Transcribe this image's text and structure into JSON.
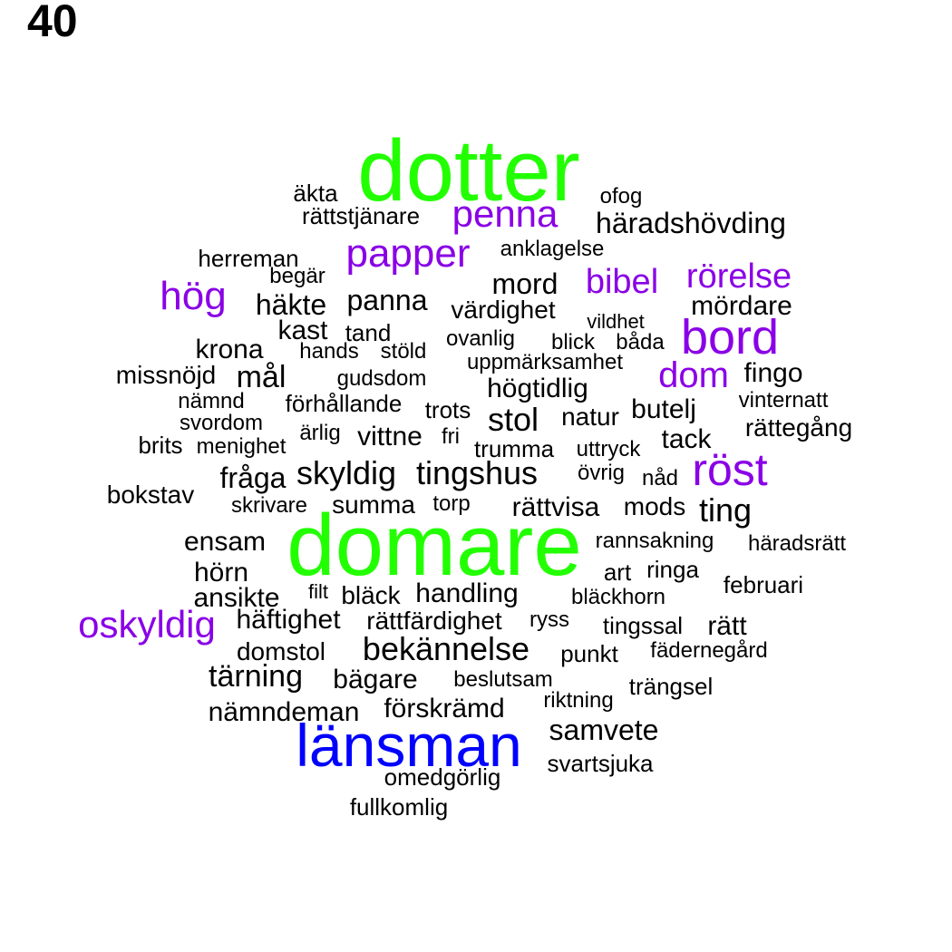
{
  "title": "40",
  "colors": {
    "green": "#22ff00",
    "purple": "#8a00e6",
    "blue": "#0000ff",
    "black": "#000000"
  },
  "words": [
    {
      "text": "dotter",
      "size": 96,
      "color": "green"
    },
    {
      "text": "domare",
      "size": 96,
      "color": "green"
    },
    {
      "text": "länsman",
      "size": 66,
      "color": "blue"
    },
    {
      "text": "bord",
      "size": 54,
      "color": "purple"
    },
    {
      "text": "röst",
      "size": 50,
      "color": "purple"
    },
    {
      "text": "papper",
      "size": 44,
      "color": "purple"
    },
    {
      "text": "penna",
      "size": 42,
      "color": "purple"
    },
    {
      "text": "hög",
      "size": 44,
      "color": "purple"
    },
    {
      "text": "oskyldig",
      "size": 42,
      "color": "purple"
    },
    {
      "text": "rörelse",
      "size": 38,
      "color": "purple"
    },
    {
      "text": "dom",
      "size": 40,
      "color": "purple"
    },
    {
      "text": "bibel",
      "size": 38,
      "color": "purple"
    },
    {
      "text": "äkta",
      "size": 26,
      "color": "black"
    },
    {
      "text": "ofog",
      "size": 24,
      "color": "black"
    },
    {
      "text": "rättstjänare",
      "size": 26,
      "color": "black"
    },
    {
      "text": "häradshövding",
      "size": 32,
      "color": "black"
    },
    {
      "text": "herreman",
      "size": 26,
      "color": "black"
    },
    {
      "text": "anklagelse",
      "size": 24,
      "color": "black"
    },
    {
      "text": "begär",
      "size": 24,
      "color": "black"
    },
    {
      "text": "mord",
      "size": 32,
      "color": "black"
    },
    {
      "text": "häkte",
      "size": 32,
      "color": "black"
    },
    {
      "text": "panna",
      "size": 32,
      "color": "black"
    },
    {
      "text": "värdighet",
      "size": 28,
      "color": "black"
    },
    {
      "text": "mördare",
      "size": 30,
      "color": "black"
    },
    {
      "text": "vildhet",
      "size": 22,
      "color": "black"
    },
    {
      "text": "kast",
      "size": 30,
      "color": "black"
    },
    {
      "text": "tand",
      "size": 26,
      "color": "black"
    },
    {
      "text": "ovanlig",
      "size": 24,
      "color": "black"
    },
    {
      "text": "blick",
      "size": 24,
      "color": "black"
    },
    {
      "text": "båda",
      "size": 24,
      "color": "black"
    },
    {
      "text": "krona",
      "size": 30,
      "color": "black"
    },
    {
      "text": "hands",
      "size": 24,
      "color": "black"
    },
    {
      "text": "stöld",
      "size": 24,
      "color": "black"
    },
    {
      "text": "uppmärksamhet",
      "size": 24,
      "color": "black"
    },
    {
      "text": "missnöjd",
      "size": 28,
      "color": "black"
    },
    {
      "text": "mål",
      "size": 34,
      "color": "black"
    },
    {
      "text": "gudsdom",
      "size": 24,
      "color": "black"
    },
    {
      "text": "högtidlig",
      "size": 30,
      "color": "black"
    },
    {
      "text": "fingo",
      "size": 30,
      "color": "black"
    },
    {
      "text": "nämnd",
      "size": 24,
      "color": "black"
    },
    {
      "text": "förhållande",
      "size": 26,
      "color": "black"
    },
    {
      "text": "trots",
      "size": 26,
      "color": "black"
    },
    {
      "text": "butelj",
      "size": 30,
      "color": "black"
    },
    {
      "text": "vinternatt",
      "size": 24,
      "color": "black"
    },
    {
      "text": "svordom",
      "size": 24,
      "color": "black"
    },
    {
      "text": "stol",
      "size": 36,
      "color": "black"
    },
    {
      "text": "natur",
      "size": 28,
      "color": "black"
    },
    {
      "text": "rättegång",
      "size": 28,
      "color": "black"
    },
    {
      "text": "ärlig",
      "size": 24,
      "color": "black"
    },
    {
      "text": "vittne",
      "size": 30,
      "color": "black"
    },
    {
      "text": "fri",
      "size": 24,
      "color": "black"
    },
    {
      "text": "tack",
      "size": 30,
      "color": "black"
    },
    {
      "text": "brits",
      "size": 26,
      "color": "black"
    },
    {
      "text": "menighet",
      "size": 24,
      "color": "black"
    },
    {
      "text": "trumma",
      "size": 26,
      "color": "black"
    },
    {
      "text": "uttryck",
      "size": 24,
      "color": "black"
    },
    {
      "text": "fråga",
      "size": 32,
      "color": "black"
    },
    {
      "text": "skyldig",
      "size": 36,
      "color": "black"
    },
    {
      "text": "tingshus",
      "size": 36,
      "color": "black"
    },
    {
      "text": "övrig",
      "size": 24,
      "color": "black"
    },
    {
      "text": "nåd",
      "size": 24,
      "color": "black"
    },
    {
      "text": "bokstav",
      "size": 28,
      "color": "black"
    },
    {
      "text": "skrivare",
      "size": 24,
      "color": "black"
    },
    {
      "text": "summa",
      "size": 28,
      "color": "black"
    },
    {
      "text": "torp",
      "size": 24,
      "color": "black"
    },
    {
      "text": "rättvisa",
      "size": 30,
      "color": "black"
    },
    {
      "text": "mods",
      "size": 28,
      "color": "black"
    },
    {
      "text": "ting",
      "size": 36,
      "color": "black"
    },
    {
      "text": "ensam",
      "size": 30,
      "color": "black"
    },
    {
      "text": "rannsakning",
      "size": 24,
      "color": "black"
    },
    {
      "text": "häradsrätt",
      "size": 24,
      "color": "black"
    },
    {
      "text": "hörn",
      "size": 30,
      "color": "black"
    },
    {
      "text": "art",
      "size": 26,
      "color": "black"
    },
    {
      "text": "ringa",
      "size": 26,
      "color": "black"
    },
    {
      "text": "februari",
      "size": 26,
      "color": "black"
    },
    {
      "text": "ansikte",
      "size": 30,
      "color": "black"
    },
    {
      "text": "filt",
      "size": 22,
      "color": "black"
    },
    {
      "text": "bläck",
      "size": 28,
      "color": "black"
    },
    {
      "text": "handling",
      "size": 30,
      "color": "black"
    },
    {
      "text": "bläckhorn",
      "size": 24,
      "color": "black"
    },
    {
      "text": "häftighet",
      "size": 30,
      "color": "black"
    },
    {
      "text": "rättfärdighet",
      "size": 28,
      "color": "black"
    },
    {
      "text": "ryss",
      "size": 24,
      "color": "black"
    },
    {
      "text": "tingssal",
      "size": 26,
      "color": "black"
    },
    {
      "text": "rätt",
      "size": 30,
      "color": "black"
    },
    {
      "text": "domstol",
      "size": 28,
      "color": "black"
    },
    {
      "text": "bekännelse",
      "size": 36,
      "color": "black"
    },
    {
      "text": "punkt",
      "size": 26,
      "color": "black"
    },
    {
      "text": "fädernegård",
      "size": 24,
      "color": "black"
    },
    {
      "text": "tärning",
      "size": 34,
      "color": "black"
    },
    {
      "text": "bägare",
      "size": 30,
      "color": "black"
    },
    {
      "text": "beslutsam",
      "size": 24,
      "color": "black"
    },
    {
      "text": "trängsel",
      "size": 26,
      "color": "black"
    },
    {
      "text": "nämndeman",
      "size": 30,
      "color": "black"
    },
    {
      "text": "förskrämd",
      "size": 30,
      "color": "black"
    },
    {
      "text": "riktning",
      "size": 24,
      "color": "black"
    },
    {
      "text": "samvete",
      "size": 32,
      "color": "black"
    },
    {
      "text": "svartsjuka",
      "size": 26,
      "color": "black"
    },
    {
      "text": "omedgörlig",
      "size": 26,
      "color": "black"
    },
    {
      "text": "fullkomlig",
      "size": 26,
      "color": "black"
    }
  ]
}
